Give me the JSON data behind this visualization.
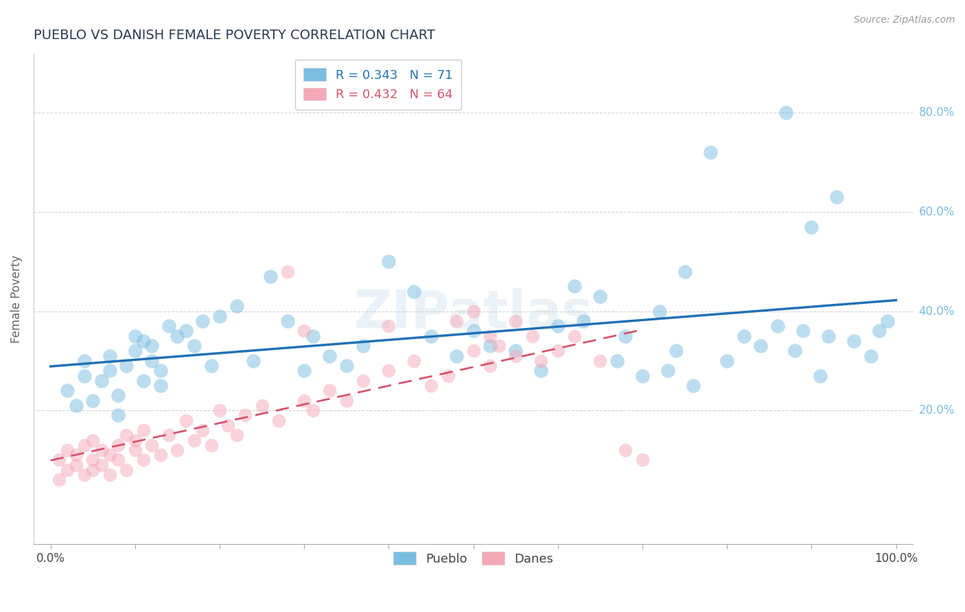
{
  "title": "PUEBLO VS DANISH FEMALE POVERTY CORRELATION CHART",
  "source": "Source: ZipAtlas.com",
  "ylabel": "Female Poverty",
  "ytick_labels": [
    "20.0%",
    "40.0%",
    "60.0%",
    "80.0%"
  ],
  "ytick_values": [
    0.2,
    0.4,
    0.6,
    0.8
  ],
  "xlim": [
    -0.02,
    1.02
  ],
  "ylim": [
    -0.07,
    0.92
  ],
  "pueblo_R": 0.343,
  "pueblo_N": 71,
  "danes_R": 0.432,
  "danes_N": 64,
  "pueblo_color": "#7abde0",
  "danes_color": "#f5a8b8",
  "pueblo_line_color": "#2171b5",
  "danes_line_color": "#d6546a",
  "background_color": "#ffffff",
  "title_color": "#2b3a52",
  "title_fontsize": 14,
  "source_fontsize": 10,
  "axis_label_color": "#666666",
  "pueblo_x": [
    0.02,
    0.03,
    0.04,
    0.04,
    0.05,
    0.06,
    0.07,
    0.07,
    0.08,
    0.08,
    0.09,
    0.1,
    0.1,
    0.11,
    0.11,
    0.12,
    0.12,
    0.13,
    0.13,
    0.14,
    0.15,
    0.16,
    0.17,
    0.18,
    0.19,
    0.2,
    0.22,
    0.24,
    0.26,
    0.28,
    0.3,
    0.31,
    0.33,
    0.35,
    0.37,
    0.4,
    0.43,
    0.45,
    0.48,
    0.5,
    0.52,
    0.55,
    0.58,
    0.6,
    0.62,
    0.63,
    0.65,
    0.67,
    0.68,
    0.7,
    0.72,
    0.73,
    0.74,
    0.75,
    0.76,
    0.78,
    0.8,
    0.82,
    0.84,
    0.86,
    0.87,
    0.88,
    0.89,
    0.9,
    0.91,
    0.92,
    0.93,
    0.95,
    0.97,
    0.98,
    0.99
  ],
  "pueblo_y": [
    0.24,
    0.21,
    0.3,
    0.27,
    0.22,
    0.26,
    0.28,
    0.31,
    0.19,
    0.23,
    0.29,
    0.32,
    0.35,
    0.26,
    0.34,
    0.3,
    0.33,
    0.28,
    0.25,
    0.37,
    0.35,
    0.36,
    0.33,
    0.38,
    0.29,
    0.39,
    0.41,
    0.3,
    0.47,
    0.38,
    0.28,
    0.35,
    0.31,
    0.29,
    0.33,
    0.5,
    0.44,
    0.35,
    0.31,
    0.36,
    0.33,
    0.32,
    0.28,
    0.37,
    0.45,
    0.38,
    0.43,
    0.3,
    0.35,
    0.27,
    0.4,
    0.28,
    0.32,
    0.48,
    0.25,
    0.72,
    0.3,
    0.35,
    0.33,
    0.37,
    0.8,
    0.32,
    0.36,
    0.57,
    0.27,
    0.35,
    0.63,
    0.34,
    0.31,
    0.36,
    0.38
  ],
  "danes_x": [
    0.01,
    0.01,
    0.02,
    0.02,
    0.03,
    0.03,
    0.04,
    0.04,
    0.05,
    0.05,
    0.05,
    0.06,
    0.06,
    0.07,
    0.07,
    0.08,
    0.08,
    0.09,
    0.09,
    0.1,
    0.1,
    0.11,
    0.11,
    0.12,
    0.13,
    0.14,
    0.15,
    0.16,
    0.17,
    0.18,
    0.19,
    0.2,
    0.21,
    0.22,
    0.23,
    0.25,
    0.27,
    0.28,
    0.3,
    0.31,
    0.33,
    0.35,
    0.37,
    0.4,
    0.43,
    0.45,
    0.47,
    0.5,
    0.52,
    0.53,
    0.55,
    0.57,
    0.3,
    0.4,
    0.48,
    0.5,
    0.52,
    0.55,
    0.58,
    0.6,
    0.62,
    0.65,
    0.68,
    0.7
  ],
  "danes_y": [
    0.06,
    0.1,
    0.08,
    0.12,
    0.09,
    0.11,
    0.07,
    0.13,
    0.1,
    0.08,
    0.14,
    0.12,
    0.09,
    0.11,
    0.07,
    0.13,
    0.1,
    0.15,
    0.08,
    0.12,
    0.14,
    0.1,
    0.16,
    0.13,
    0.11,
    0.15,
    0.12,
    0.18,
    0.14,
    0.16,
    0.13,
    0.2,
    0.17,
    0.15,
    0.19,
    0.21,
    0.18,
    0.48,
    0.22,
    0.2,
    0.24,
    0.22,
    0.26,
    0.28,
    0.3,
    0.25,
    0.27,
    0.32,
    0.29,
    0.33,
    0.31,
    0.35,
    0.36,
    0.37,
    0.38,
    0.4,
    0.35,
    0.38,
    0.3,
    0.32,
    0.35,
    0.3,
    0.12,
    0.1
  ]
}
